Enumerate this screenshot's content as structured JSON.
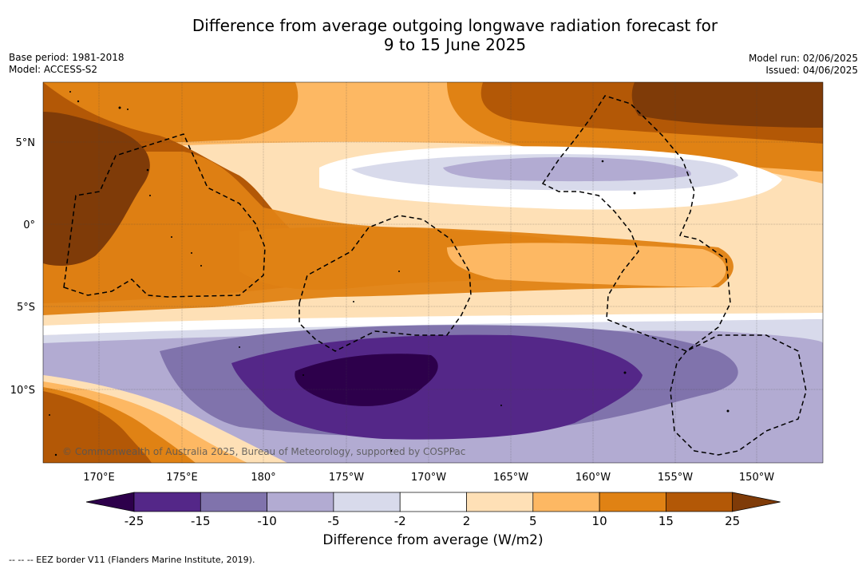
{
  "title_line1": "Difference from average outgoing longwave radiation forecast for",
  "title_line2": "9 to 15 June 2025",
  "base_period": "Base period: 1981-2018",
  "model": "Model: ACCESS-S2",
  "model_run": "Model run: 02/06/2025",
  "issued": "Issued: 04/06/2025",
  "copyright": "© Commonwealth of Australia 2025, Bureau of Meteorology, supported by COSPPac",
  "lat_labels": [
    "5°N",
    "0°",
    "5°S",
    "10°S"
  ],
  "lon_labels": [
    "170°E",
    "175°E",
    "180°",
    "175°W",
    "170°W",
    "165°W",
    "160°W",
    "155°W",
    "150°W"
  ],
  "colorbar": {
    "title": "Difference from average (W/m2)",
    "ticks": [
      "-25",
      "-15",
      "-10",
      "-5",
      "-2",
      "2",
      "5",
      "10",
      "15",
      "25"
    ],
    "colors": [
      "#2d004b",
      "#542788",
      "#8073ac",
      "#b2abd2",
      "#d8daeb",
      "#ffffff",
      "#fee0b6",
      "#fdb863",
      "#e08214",
      "#b35806",
      "#7f3b08"
    ]
  },
  "footnote": "-- -- -- EEZ border V11 (Flanders Marine Institute, 2019)."
}
